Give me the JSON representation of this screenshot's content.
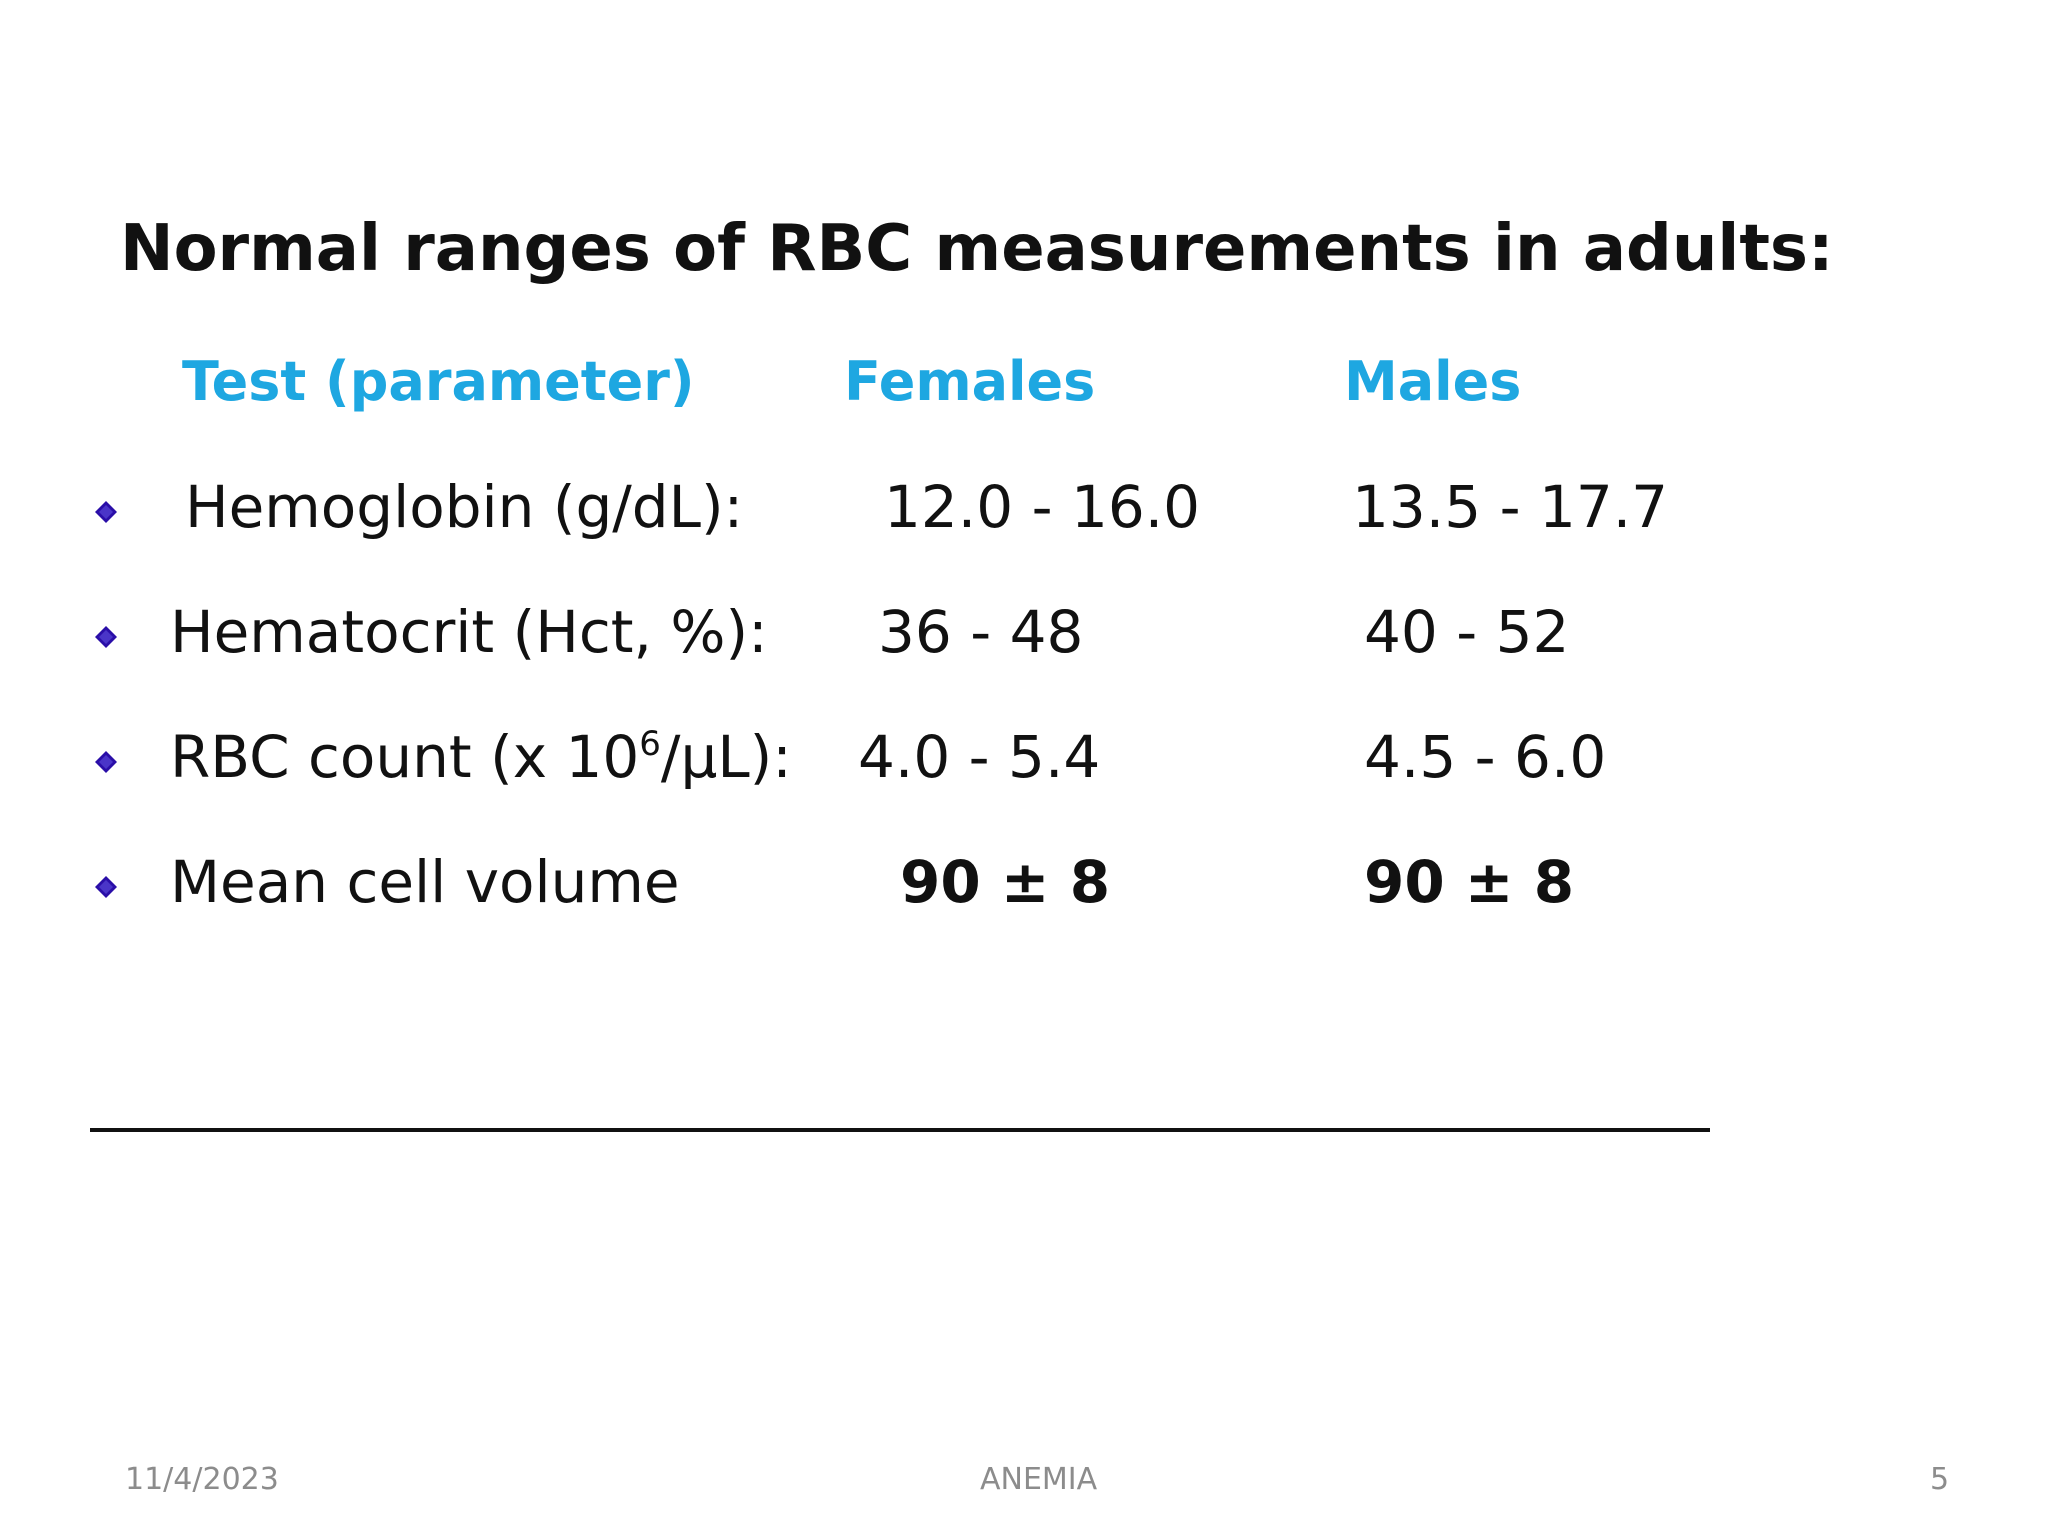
{
  "title": "Normal ranges of RBC measurements in  adults:",
  "headers": {
    "test": "Test (parameter)",
    "females": "Females",
    "males": "Males"
  },
  "rows": [
    {
      "label": "Hemoglobin (g/dL):",
      "females": "12.0 - 16.0",
      "males": "13.5 - 17.7"
    },
    {
      "label_prefix": "RBC count (x 10",
      "label_sup": "6",
      "label_suffix": "/μL):",
      "females": "4.0 - 5.4",
      "males": "4.5 - 6.0"
    },
    {
      "label": "Hematocrit (Hct, %):",
      "females": "36 - 48",
      "males": "40 - 52"
    },
    {
      "label": "Mean cell volume",
      "females": "90 ± 8",
      "males": "90 ± 8"
    }
  ],
  "footer": {
    "date": "11/4/2023",
    "center": "ANEMIA",
    "page": "5"
  },
  "colors": {
    "header": "#1ea7e1",
    "bullet": "#2a0ea8",
    "text": "#111111"
  },
  "icons": {
    "bullet": "diamond-bullet-icon"
  }
}
